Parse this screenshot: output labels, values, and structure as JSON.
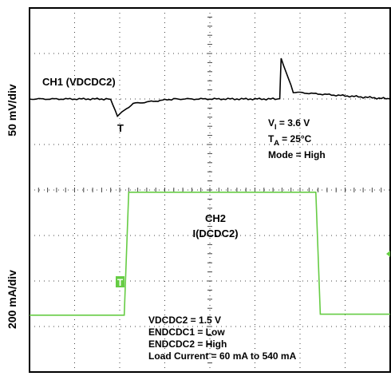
{
  "chart_data": {
    "type": "line",
    "y_axis_upper_label": "50 mV/div",
    "y_axis_lower_label": "200 mA/div",
    "grid": "dotted 8x8 divisions",
    "series": [
      {
        "name": "CH1 (VDCDC2)",
        "color": "#000000",
        "baseline_div": 2.0,
        "description_points": [
          {
            "t_div": 0.0,
            "v_div": 2.0
          },
          {
            "t_div": 1.8,
            "v_div": 2.0
          },
          {
            "t_div": 1.95,
            "v_div": 1.63
          },
          {
            "t_div": 2.3,
            "v_div": 1.9
          },
          {
            "t_div": 3.2,
            "v_div": 2.0
          },
          {
            "t_div": 5.55,
            "v_div": 2.0
          },
          {
            "t_div": 5.58,
            "v_div": 2.9
          },
          {
            "t_div": 5.85,
            "v_div": 2.15
          },
          {
            "t_div": 8.0,
            "v_div": 2.0
          }
        ]
      },
      {
        "name": "CH2 I(DCDC2)",
        "color": "#66cc44",
        "points": [
          {
            "t_div": 0.0,
            "i_div": 0.0
          },
          {
            "t_div": 2.1,
            "i_div": 0.0
          },
          {
            "t_div": 2.2,
            "i_div": 2.7
          },
          {
            "t_div": 6.35,
            "i_div": 2.7
          },
          {
            "t_div": 6.45,
            "i_div": 0.02
          },
          {
            "t_div": 8.0,
            "i_div": 0.02
          }
        ]
      }
    ],
    "ch1_marker": "T",
    "conditions_upper": {
      "vi": {
        "sym": "V",
        "sub": "I",
        "val": " = 3.6 V"
      },
      "ta": {
        "sym": "T",
        "sub": "A",
        "val": " = 25°C"
      },
      "mode": "Mode = High"
    },
    "ch2_label_line1": "CH2",
    "ch2_label_line2": "I(DCDC2)",
    "ch2_marker": "T",
    "conditions_lower": [
      "VDCDC2 = 1.5 V",
      "ENDCDC1 = Low",
      "ENDCDC2 = High",
      "Load Current = 60 mA to 540 mA"
    ]
  }
}
